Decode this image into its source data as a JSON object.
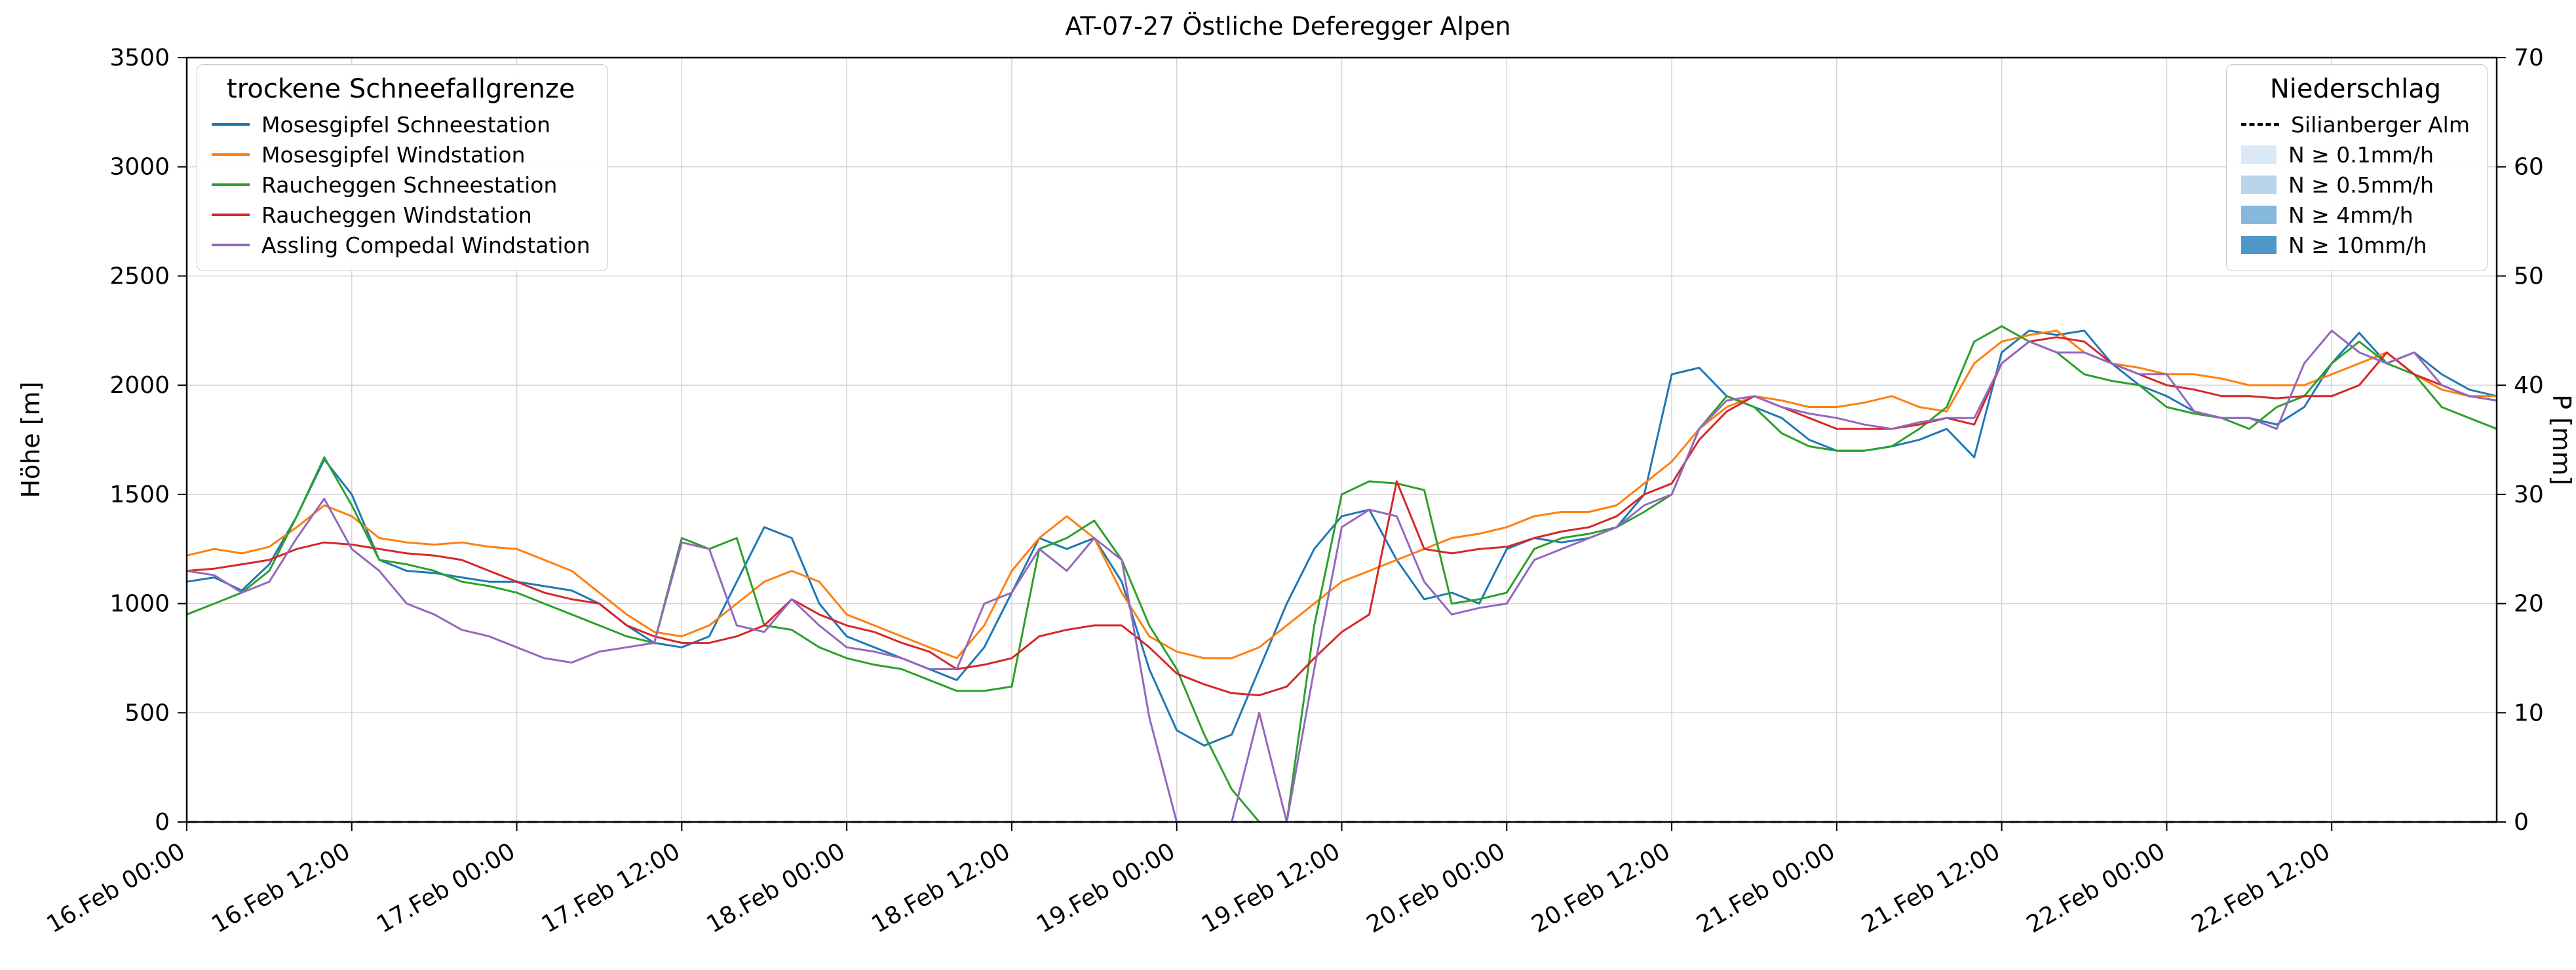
{
  "chart_data": {
    "type": "line",
    "title": "AT-07-27 Östliche Deferegger Alpen",
    "ylabel_left": "Höhe [m]",
    "ylabel_right": "P [mm]",
    "ylim_left": [
      0,
      3500
    ],
    "yticks_left": [
      0,
      500,
      1000,
      1500,
      2000,
      2500,
      3000,
      3500
    ],
    "ylim_right": [
      0,
      70
    ],
    "yticks_right": [
      0,
      10,
      20,
      30,
      40,
      50,
      60,
      70
    ],
    "grid": true,
    "xlim": [
      0,
      168
    ],
    "x_start": 0,
    "x_step": 2,
    "x_unit": "hours since 16.Feb 00:00",
    "xticks": [
      {
        "h": 0,
        "label": "16.Feb 00:00"
      },
      {
        "h": 12,
        "label": "16.Feb 12:00"
      },
      {
        "h": 24,
        "label": "17.Feb 00:00"
      },
      {
        "h": 36,
        "label": "17.Feb 12:00"
      },
      {
        "h": 48,
        "label": "18.Feb 00:00"
      },
      {
        "h": 60,
        "label": "18.Feb 12:00"
      },
      {
        "h": 72,
        "label": "19.Feb 00:00"
      },
      {
        "h": 84,
        "label": "19.Feb 12:00"
      },
      {
        "h": 96,
        "label": "20.Feb 00:00"
      },
      {
        "h": 108,
        "label": "20.Feb 12:00"
      },
      {
        "h": 120,
        "label": "21.Feb 00:00"
      },
      {
        "h": 132,
        "label": "21.Feb 12:00"
      },
      {
        "h": 144,
        "label": "22.Feb 00:00"
      },
      {
        "h": 156,
        "label": "22.Feb 12:00"
      }
    ],
    "series": [
      {
        "name": "Mosesgipfel Schneestation",
        "color": "#1f77b4",
        "values": [
          1100,
          1120,
          1060,
          1180,
          1400,
          1660,
          1500,
          1200,
          1150,
          1140,
          1120,
          1100,
          1100,
          1080,
          1060,
          1000,
          900,
          820,
          800,
          850,
          1100,
          1350,
          1300,
          1000,
          850,
          800,
          750,
          700,
          650,
          800,
          1050,
          1300,
          1250,
          1300,
          1100,
          700,
          420,
          350,
          400,
          700,
          1000,
          1250,
          1400,
          1430,
          1200,
          1020,
          1050,
          1000,
          1250,
          1300,
          1280,
          1300,
          1350,
          1500,
          2050,
          2080,
          1950,
          1900,
          1850,
          1750,
          1700,
          1700,
          1720,
          1750,
          1800,
          1670,
          2150,
          2250,
          2230,
          2250,
          2100,
          2000,
          1950,
          1880,
          1850,
          1850,
          1820,
          1900,
          2100,
          2240,
          2100,
          2150,
          2050,
          1980,
          1950
        ]
      },
      {
        "name": "Mosesgipfel Windstation",
        "color": "#ff7f0e",
        "values": [
          1220,
          1250,
          1230,
          1260,
          1350,
          1450,
          1400,
          1300,
          1280,
          1270,
          1280,
          1260,
          1250,
          1200,
          1150,
          1050,
          950,
          870,
          850,
          900,
          1000,
          1100,
          1150,
          1100,
          950,
          900,
          850,
          800,
          750,
          900,
          1150,
          1300,
          1400,
          1300,
          1050,
          850,
          780,
          750,
          750,
          800,
          900,
          1000,
          1100,
          1150,
          1200,
          1250,
          1300,
          1320,
          1350,
          1400,
          1420,
          1420,
          1450,
          1550,
          1650,
          1800,
          1900,
          1950,
          1930,
          1900,
          1900,
          1920,
          1950,
          1900,
          1880,
          2100,
          2200,
          2230,
          2250,
          2150,
          2100,
          2080,
          2050,
          2050,
          2030,
          2000,
          2000,
          2000,
          2050,
          2100,
          2150,
          2050,
          1980,
          1950,
          1950
        ]
      },
      {
        "name": "Raucheggen Schneestation",
        "color": "#2ca02c",
        "values": [
          950,
          1000,
          1050,
          1150,
          1400,
          1670,
          1450,
          1200,
          1180,
          1150,
          1100,
          1080,
          1050,
          1000,
          950,
          900,
          850,
          820,
          1300,
          1250,
          1300,
          900,
          880,
          800,
          750,
          720,
          700,
          650,
          600,
          600,
          620,
          1250,
          1300,
          1380,
          1200,
          900,
          700,
          400,
          150,
          0,
          0,
          900,
          1500,
          1560,
          1550,
          1520,
          1000,
          1020,
          1050,
          1250,
          1300,
          1320,
          1350,
          1420,
          1500,
          1800,
          1950,
          1900,
          1780,
          1720,
          1700,
          1700,
          1720,
          1800,
          1900,
          2200,
          2270,
          2200,
          2150,
          2050,
          2020,
          2000,
          1900,
          1870,
          1850,
          1800,
          1900,
          1950,
          2100,
          2200,
          2100,
          2050,
          1900,
          1850,
          1800
        ]
      },
      {
        "name": "Raucheggen Windstation",
        "color": "#d62728",
        "values": [
          1150,
          1160,
          1180,
          1200,
          1250,
          1280,
          1270,
          1250,
          1230,
          1220,
          1200,
          1150,
          1100,
          1050,
          1020,
          1000,
          900,
          850,
          820,
          820,
          850,
          900,
          1020,
          950,
          900,
          870,
          820,
          780,
          700,
          720,
          750,
          850,
          880,
          900,
          900,
          800,
          680,
          630,
          590,
          580,
          620,
          750,
          870,
          950,
          1560,
          1250,
          1230,
          1250,
          1260,
          1300,
          1330,
          1350,
          1400,
          1500,
          1550,
          1750,
          1880,
          1950,
          1900,
          1850,
          1800,
          1800,
          1800,
          1820,
          1850,
          1820,
          2100,
          2200,
          2220,
          2200,
          2100,
          2050,
          2000,
          1980,
          1950,
          1950,
          1940,
          1950,
          1950,
          2000,
          2150,
          2050,
          2000,
          1950,
          1930
        ]
      },
      {
        "name": "Assling Compedal Windstation",
        "color": "#9467bd",
        "values": [
          1150,
          1130,
          1050,
          1100,
          1300,
          1480,
          1250,
          1150,
          1000,
          950,
          880,
          850,
          800,
          750,
          730,
          780,
          800,
          820,
          1280,
          1250,
          900,
          870,
          1020,
          900,
          800,
          780,
          750,
          700,
          700,
          1000,
          1050,
          1250,
          1150,
          1300,
          1200,
          480,
          0,
          0,
          0,
          500,
          0,
          700,
          1350,
          1430,
          1400,
          1100,
          950,
          980,
          1000,
          1200,
          1250,
          1300,
          1350,
          1450,
          1500,
          1800,
          1930,
          1950,
          1900,
          1870,
          1850,
          1820,
          1800,
          1830,
          1850,
          1850,
          2100,
          2200,
          2150,
          2150,
          2100,
          2050,
          2050,
          1880,
          1850,
          1850,
          1800,
          2100,
          2250,
          2150,
          2100,
          2150,
          2000,
          1950,
          1930
        ]
      }
    ],
    "precip_line": {
      "name": "Silianberger Alm",
      "style": "dashed",
      "color": "#000000",
      "value_mm": 0
    }
  },
  "legend_left": {
    "title": "trockene Schneefallgrenze"
  },
  "legend_right": {
    "title": "Niederschlag",
    "patches": [
      {
        "label": "N ≥ 0.1mm/h",
        "color": "#dbe9f6"
      },
      {
        "label": "N ≥ 0.5mm/h",
        "color": "#b9d5ea"
      },
      {
        "label": "N ≥ 4mm/h",
        "color": "#85b8da"
      },
      {
        "label": "N ≥ 10mm/h",
        "color": "#4e97c8"
      }
    ]
  }
}
